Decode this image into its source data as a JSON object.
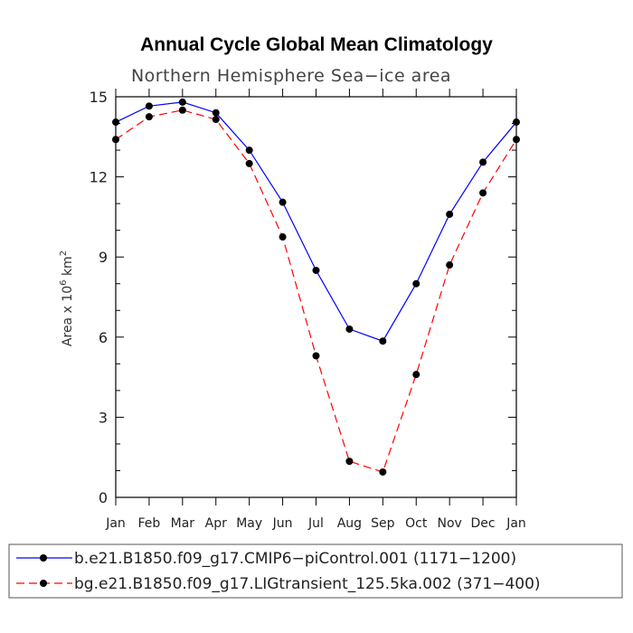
{
  "chart_data": {
    "type": "line",
    "title": "Annual Cycle Global Mean Climatology",
    "subtitle": "Northern Hemisphere Sea−ice area",
    "ylabel_main": "Area x 10",
    "ylabel_exp": "6",
    "ylabel_unit": " km",
    "ylabel_unit_exp": "2",
    "categories": [
      "Jan",
      "Feb",
      "Mar",
      "Apr",
      "May",
      "Jun",
      "Jul",
      "Aug",
      "Sep",
      "Oct",
      "Nov",
      "Dec",
      "Jan"
    ],
    "ylim": [
      0,
      15
    ],
    "yticks": [
      0,
      3,
      6,
      9,
      12,
      15
    ],
    "grid": false,
    "legend_position": "bottom",
    "series": [
      {
        "name": "b.e21.B1850.f09_g17.CMIP6−piControl.001 (1171−1200)",
        "color": "#0000ff",
        "dash": "solid",
        "values": [
          14.05,
          14.65,
          14.8,
          14.4,
          13.0,
          11.05,
          8.5,
          6.3,
          5.85,
          8.0,
          10.6,
          12.55,
          14.05
        ]
      },
      {
        "name": "bg.e21.B1850.f09_g17.LIGtransient_125.5ka.002 (371−400)",
        "color": "#ff0000",
        "dash": "dashed",
        "values": [
          13.4,
          14.25,
          14.5,
          14.15,
          12.5,
          9.75,
          5.3,
          1.35,
          0.95,
          4.6,
          8.7,
          11.4,
          13.4
        ]
      }
    ]
  }
}
